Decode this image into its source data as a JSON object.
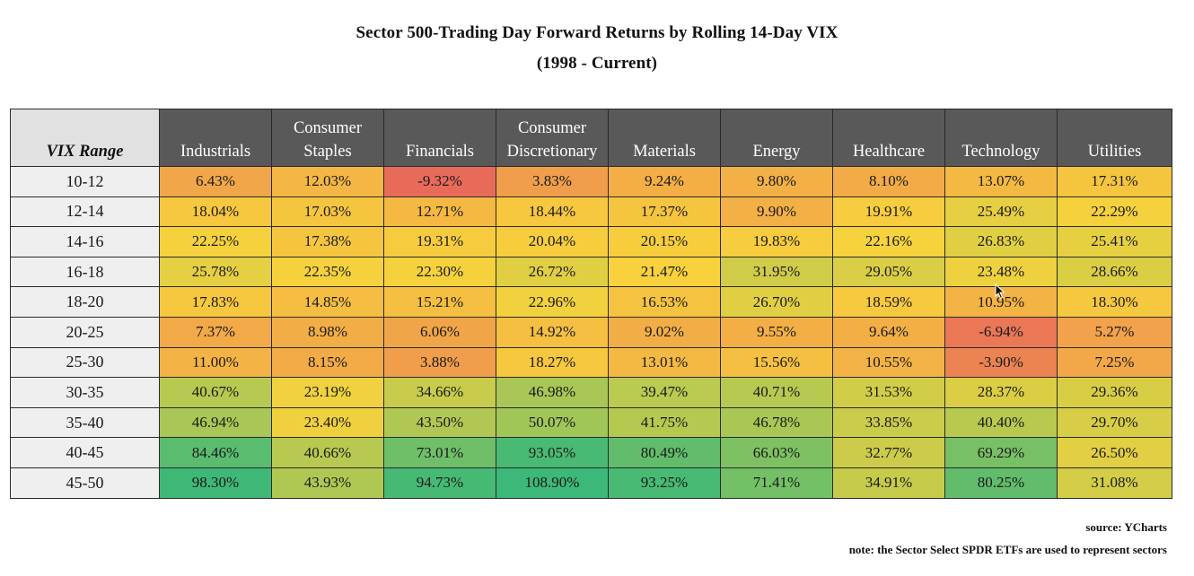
{
  "title": "Sector 500-Trading Day Forward Returns by Rolling 14-Day VIX",
  "subtitle": "(1998 - Current)",
  "source": "source: YCharts",
  "note": "note: the Sector Select SPDR ETFs are used to represent sectors",
  "chart_data": {
    "type": "table",
    "title": "Sector 500-Trading Day Forward Returns by Rolling 14-Day VIX",
    "subtitle": "(1998 - Current)",
    "row_header": "VIX Range",
    "columns": [
      "Industrials",
      "Consumer\nStaples",
      "Financials",
      "Consumer\nDiscretionary",
      "Materials",
      "Energy",
      "Healthcare",
      "Technology",
      "Utilities"
    ],
    "rows": [
      {
        "range": "10-12",
        "values": [
          "6.43%",
          "12.03%",
          "-9.32%",
          "3.83%",
          "9.24%",
          "9.80%",
          "8.10%",
          "13.07%",
          "17.31%"
        ]
      },
      {
        "range": "12-14",
        "values": [
          "18.04%",
          "17.03%",
          "12.71%",
          "18.44%",
          "17.37%",
          "9.90%",
          "19.91%",
          "25.49%",
          "22.29%"
        ]
      },
      {
        "range": "14-16",
        "values": [
          "22.25%",
          "17.38%",
          "19.31%",
          "20.04%",
          "20.15%",
          "19.83%",
          "22.16%",
          "26.83%",
          "25.41%"
        ]
      },
      {
        "range": "16-18",
        "values": [
          "25.78%",
          "22.35%",
          "22.30%",
          "26.72%",
          "21.47%",
          "31.95%",
          "29.05%",
          "23.48%",
          "28.66%"
        ]
      },
      {
        "range": "18-20",
        "values": [
          "17.83%",
          "14.85%",
          "15.21%",
          "22.96%",
          "16.53%",
          "26.70%",
          "18.59%",
          "10.95%",
          "18.30%"
        ]
      },
      {
        "range": "20-25",
        "values": [
          "7.37%",
          "8.98%",
          "6.06%",
          "14.92%",
          "9.02%",
          "9.55%",
          "9.64%",
          "-6.94%",
          "5.27%"
        ]
      },
      {
        "range": "25-30",
        "values": [
          "11.00%",
          "8.15%",
          "3.88%",
          "18.27%",
          "13.01%",
          "15.56%",
          "10.55%",
          "-3.90%",
          "7.25%"
        ]
      },
      {
        "range": "30-35",
        "values": [
          "40.67%",
          "23.19%",
          "34.66%",
          "46.98%",
          "39.47%",
          "40.71%",
          "31.53%",
          "28.37%",
          "29.36%"
        ]
      },
      {
        "range": "35-40",
        "values": [
          "46.94%",
          "23.40%",
          "43.50%",
          "50.07%",
          "41.75%",
          "46.78%",
          "33.85%",
          "40.40%",
          "29.70%"
        ]
      },
      {
        "range": "40-45",
        "values": [
          "84.46%",
          "40.66%",
          "73.01%",
          "93.05%",
          "80.49%",
          "66.03%",
          "32.77%",
          "69.29%",
          "26.50%"
        ]
      },
      {
        "range": "45-50",
        "values": [
          "98.30%",
          "43.93%",
          "94.73%",
          "108.90%",
          "93.25%",
          "71.41%",
          "34.91%",
          "80.25%",
          "31.08%"
        ]
      }
    ],
    "color_scale": {
      "low": "#e8695a",
      "mid": "#f8d23c",
      "high": "#3cb878"
    }
  }
}
